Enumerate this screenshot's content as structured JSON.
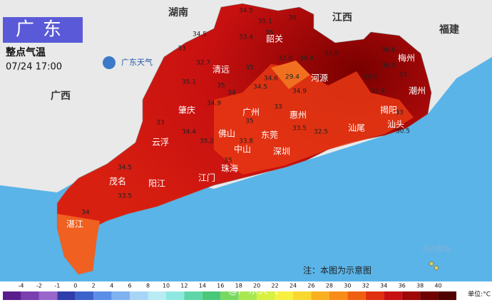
{
  "header": {
    "title": "广东",
    "subtitle": "整点气温",
    "time": "07/24 17:00",
    "logo": "广东天气"
  },
  "regions": [
    "湖南",
    "江西",
    "福建",
    "广西"
  ],
  "cities": [
    "韶关",
    "清远",
    "河源",
    "梅州",
    "潮州",
    "肇庆",
    "广州",
    "惠州",
    "揭阳",
    "汕头",
    "汕尾",
    "东莞",
    "佛山",
    "云浮",
    "中山",
    "深圳",
    "珠海",
    "江门",
    "阳江",
    "茂名",
    "湛江"
  ],
  "temps": [
    "34.5",
    "35.1",
    "36",
    "34.5",
    "33.4",
    "35",
    "33",
    "32.9",
    "30.4",
    "33.8",
    "36.6",
    "32.7",
    "34.6",
    "35",
    "29.4",
    "35",
    "35.1",
    "34",
    "34.5",
    "34.9",
    "35.5",
    "32.6",
    "33",
    "36.5",
    "33",
    "30.5",
    "33.5",
    "32.5",
    "33",
    "35",
    "34.9",
    "33",
    "34.4",
    "35.2",
    "33.8",
    "34.5",
    "35",
    "33.5",
    "34"
  ],
  "note": "注：本图为示意图",
  "islands": "东沙群岛",
  "watermark": "@广东天气",
  "legend": {
    "ticks": [
      -4,
      -2,
      -1,
      0,
      2,
      4,
      6,
      8,
      10,
      12,
      14,
      16,
      18,
      20,
      22,
      24,
      26,
      28,
      30,
      32,
      34,
      36,
      38,
      40
    ],
    "colors": [
      "#5a1e8c",
      "#7a3fb0",
      "#9966cc",
      "#2f3ea8",
      "#3d62cc",
      "#5b8ee6",
      "#7fb2f0",
      "#a8d4f8",
      "#b8ecf4",
      "#8ee8e0",
      "#5ed6a8",
      "#48c878",
      "#78d860",
      "#a8e850",
      "#d8f040",
      "#f8f040",
      "#f8d830",
      "#f8b020",
      "#f88c18",
      "#f06010",
      "#e03010",
      "#c81010",
      "#a00808",
      "#700000",
      "#500000"
    ],
    "unit": "单位:°C"
  }
}
